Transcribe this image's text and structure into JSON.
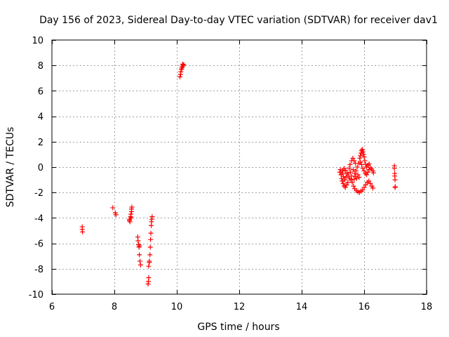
{
  "chart_data": {
    "type": "scatter",
    "title": "Day 156 of 2023, Sidereal Day-to-day VTEC variation (SDTVAR) for receiver dav1",
    "xlabel": "GPS time / hours",
    "ylabel": "SDTVAR / TECUs",
    "xlim": [
      6,
      18
    ],
    "ylim": [
      -10,
      10
    ],
    "x_ticks": [
      "6",
      "8",
      "10",
      "12",
      "14",
      "16",
      "18"
    ],
    "y_ticks": [
      "10",
      "8",
      "6",
      "4",
      "2",
      "0",
      "-2",
      "-4",
      "-6",
      "-8",
      "-10"
    ],
    "x_tick_values": [
      6,
      8,
      10,
      12,
      14,
      16,
      18
    ],
    "y_tick_values": [
      10,
      8,
      6,
      4,
      2,
      0,
      -2,
      -4,
      -6,
      -8,
      -10
    ],
    "grid": true,
    "marker": "+",
    "marker_color": "#ff0000",
    "series": [
      {
        "name": "SDTVAR",
        "points": [
          [
            6.97,
            -4.7
          ],
          [
            6.97,
            -4.9
          ],
          [
            6.98,
            -5.1
          ],
          [
            7.95,
            -3.2
          ],
          [
            8.03,
            -3.6
          ],
          [
            8.05,
            -3.75
          ],
          [
            8.48,
            -4.2
          ],
          [
            8.49,
            -4.1
          ],
          [
            8.5,
            -4.3
          ],
          [
            8.52,
            -3.9
          ],
          [
            8.53,
            -3.7
          ],
          [
            8.55,
            -3.5
          ],
          [
            8.55,
            -3.3
          ],
          [
            8.56,
            -3.15
          ],
          [
            8.54,
            -4.0
          ],
          [
            8.75,
            -5.5
          ],
          [
            8.76,
            -5.8
          ],
          [
            8.78,
            -6.1
          ],
          [
            8.79,
            -6.3
          ],
          [
            8.8,
            -6.2
          ],
          [
            8.8,
            -6.9
          ],
          [
            8.82,
            -7.4
          ],
          [
            8.84,
            -7.7
          ],
          [
            9.08,
            -9.2
          ],
          [
            9.09,
            -9.0
          ],
          [
            9.1,
            -8.7
          ],
          [
            9.1,
            -7.8
          ],
          [
            9.12,
            -7.4
          ],
          [
            9.12,
            -7.5
          ],
          [
            9.14,
            -6.9
          ],
          [
            9.15,
            -6.3
          ],
          [
            9.16,
            -5.7
          ],
          [
            9.17,
            -5.2
          ],
          [
            9.18,
            -4.6
          ],
          [
            9.19,
            -4.3
          ],
          [
            9.2,
            -4.1
          ],
          [
            9.21,
            -3.9
          ],
          [
            10.1,
            7.1
          ],
          [
            10.12,
            7.3
          ],
          [
            10.13,
            7.5
          ],
          [
            10.15,
            7.7
          ],
          [
            10.16,
            7.8
          ],
          [
            10.18,
            7.9
          ],
          [
            10.2,
            8.0
          ],
          [
            10.22,
            8.05
          ],
          [
            10.19,
            8.1
          ],
          [
            15.22,
            -0.4
          ],
          [
            15.24,
            -0.2
          ],
          [
            15.26,
            -0.6
          ],
          [
            15.28,
            -0.9
          ],
          [
            15.3,
            -1.1
          ],
          [
            15.33,
            -1.3
          ],
          [
            15.36,
            -1.5
          ],
          [
            15.4,
            -1.6
          ],
          [
            15.44,
            -1.4
          ],
          [
            15.48,
            -1.2
          ],
          [
            15.32,
            -0.3
          ],
          [
            15.36,
            -0.1
          ],
          [
            15.4,
            -0.25
          ],
          [
            15.45,
            -0.45
          ],
          [
            15.5,
            -0.7
          ],
          [
            15.54,
            -0.9
          ],
          [
            15.58,
            -1.0
          ],
          [
            15.6,
            -0.7
          ],
          [
            15.56,
            -0.4
          ],
          [
            15.52,
            -0.1
          ],
          [
            15.55,
            0.2
          ],
          [
            15.6,
            0.5
          ],
          [
            15.64,
            0.7
          ],
          [
            15.68,
            0.5
          ],
          [
            15.72,
            0.3
          ],
          [
            15.65,
            -0.2
          ],
          [
            15.7,
            -0.5
          ],
          [
            15.74,
            -0.3
          ],
          [
            15.78,
            0.0
          ],
          [
            15.82,
            0.3
          ],
          [
            15.62,
            -1.2
          ],
          [
            15.66,
            -1.5
          ],
          [
            15.7,
            -1.7
          ],
          [
            15.75,
            -1.85
          ],
          [
            15.8,
            -1.95
          ],
          [
            15.85,
            -2.0
          ],
          [
            15.9,
            -1.9
          ],
          [
            15.95,
            -1.8
          ],
          [
            16.0,
            -1.6
          ],
          [
            16.05,
            -1.4
          ],
          [
            16.1,
            -1.2
          ],
          [
            16.15,
            -1.1
          ],
          [
            16.2,
            -1.3
          ],
          [
            16.25,
            -1.5
          ],
          [
            16.28,
            -1.65
          ],
          [
            15.86,
            0.7
          ],
          [
            15.88,
            0.9
          ],
          [
            15.9,
            1.1
          ],
          [
            15.92,
            1.3
          ],
          [
            15.94,
            1.4
          ],
          [
            15.96,
            1.2
          ],
          [
            15.98,
            1.0
          ],
          [
            16.0,
            0.8
          ],
          [
            16.02,
            0.5
          ],
          [
            16.05,
            0.2
          ],
          [
            15.88,
            0.4
          ],
          [
            15.92,
            0.2
          ],
          [
            15.96,
            -0.1
          ],
          [
            16.0,
            -0.3
          ],
          [
            16.04,
            -0.5
          ],
          [
            16.08,
            -0.6
          ],
          [
            16.12,
            -0.4
          ],
          [
            16.16,
            -0.2
          ],
          [
            16.2,
            -0.05
          ],
          [
            16.24,
            -0.15
          ],
          [
            16.28,
            -0.3
          ],
          [
            16.3,
            -0.45
          ],
          [
            16.08,
            0.0
          ],
          [
            16.12,
            0.15
          ],
          [
            16.16,
            0.25
          ],
          [
            15.8,
            -0.6
          ],
          [
            15.84,
            -0.8
          ],
          [
            15.76,
            -0.9
          ],
          [
            15.72,
            -0.75
          ],
          [
            15.68,
            -0.95
          ],
          [
            15.3,
            -0.5
          ],
          [
            15.42,
            -0.8
          ],
          [
            15.46,
            -0.55
          ],
          [
            15.34,
            -0.75
          ],
          [
            15.38,
            -1.0
          ],
          [
            16.97,
            0.1
          ],
          [
            16.97,
            -0.1
          ],
          [
            16.98,
            -0.5
          ],
          [
            16.98,
            -0.7
          ],
          [
            16.99,
            -1.0
          ],
          [
            16.99,
            -1.6
          ],
          [
            17.0,
            -1.55
          ]
        ]
      }
    ]
  }
}
